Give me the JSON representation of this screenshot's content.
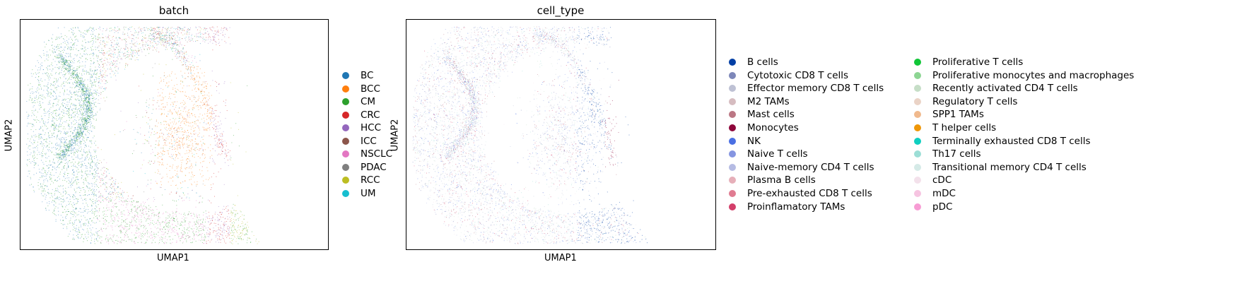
{
  "chart_data": [
    {
      "type": "scatter",
      "title": "batch",
      "xlabel": "UMAP1",
      "ylabel": "UMAP2",
      "grid": false,
      "legend_placement": "right",
      "series": [
        {
          "name": "BC",
          "color": "#1f77b4"
        },
        {
          "name": "BCC",
          "color": "#ff7f0e"
        },
        {
          "name": "CM",
          "color": "#2ca02c"
        },
        {
          "name": "CRC",
          "color": "#d62728"
        },
        {
          "name": "HCC",
          "color": "#9467bd"
        },
        {
          "name": "ICC",
          "color": "#8c564b"
        },
        {
          "name": "NSCLC",
          "color": "#e377c2"
        },
        {
          "name": "PDAC",
          "color": "#7f7f7f"
        },
        {
          "name": "RCC",
          "color": "#bcbd22"
        },
        {
          "name": "UM",
          "color": "#17becf"
        }
      ]
    },
    {
      "type": "scatter",
      "title": "cell_type",
      "xlabel": "UMAP1",
      "ylabel": "UMAP2",
      "grid": false,
      "legend_placement": "right",
      "series": [
        {
          "name": "B cells",
          "color": "#023fa5"
        },
        {
          "name": "Cytotoxic CD8 T cells",
          "color": "#7d87b9"
        },
        {
          "name": "Effector memory CD8 T cells",
          "color": "#bec1d4"
        },
        {
          "name": "M2 TAMs",
          "color": "#d6bcc0"
        },
        {
          "name": "Mast cells",
          "color": "#bb7784"
        },
        {
          "name": "Monocytes",
          "color": "#8e063b"
        },
        {
          "name": "NK",
          "color": "#4a6fe3"
        },
        {
          "name": "Naive T cells",
          "color": "#8595e1"
        },
        {
          "name": "Naive-memory CD4 T cells",
          "color": "#b5bbe3"
        },
        {
          "name": "Plasma B cells",
          "color": "#e6afb9"
        },
        {
          "name": "Pre-exhausted CD8 T cells",
          "color": "#e07b91"
        },
        {
          "name": "Proinflamatory TAMs",
          "color": "#d33f6a"
        },
        {
          "name": "Proliferative T cells",
          "color": "#11c638"
        },
        {
          "name": "Proliferative monocytes and macrophages",
          "color": "#8dd593"
        },
        {
          "name": "Recently activated CD4 T cells",
          "color": "#c6dec7"
        },
        {
          "name": "Regulatory T cells",
          "color": "#ead3c6"
        },
        {
          "name": "SPP1 TAMs",
          "color": "#f0b98d"
        },
        {
          "name": "T helper cells",
          "color": "#ef9708"
        },
        {
          "name": "Terminally exhausted CD8 T cells",
          "color": "#0fcfc0"
        },
        {
          "name": "Th17 cells",
          "color": "#9cded6"
        },
        {
          "name": "Transitional memory CD4 T cells",
          "color": "#d5eae7"
        },
        {
          "name": "cDC",
          "color": "#f3e1eb"
        },
        {
          "name": "mDC",
          "color": "#f6c4e1"
        },
        {
          "name": "pDC",
          "color": "#f79cd4"
        }
      ]
    }
  ]
}
